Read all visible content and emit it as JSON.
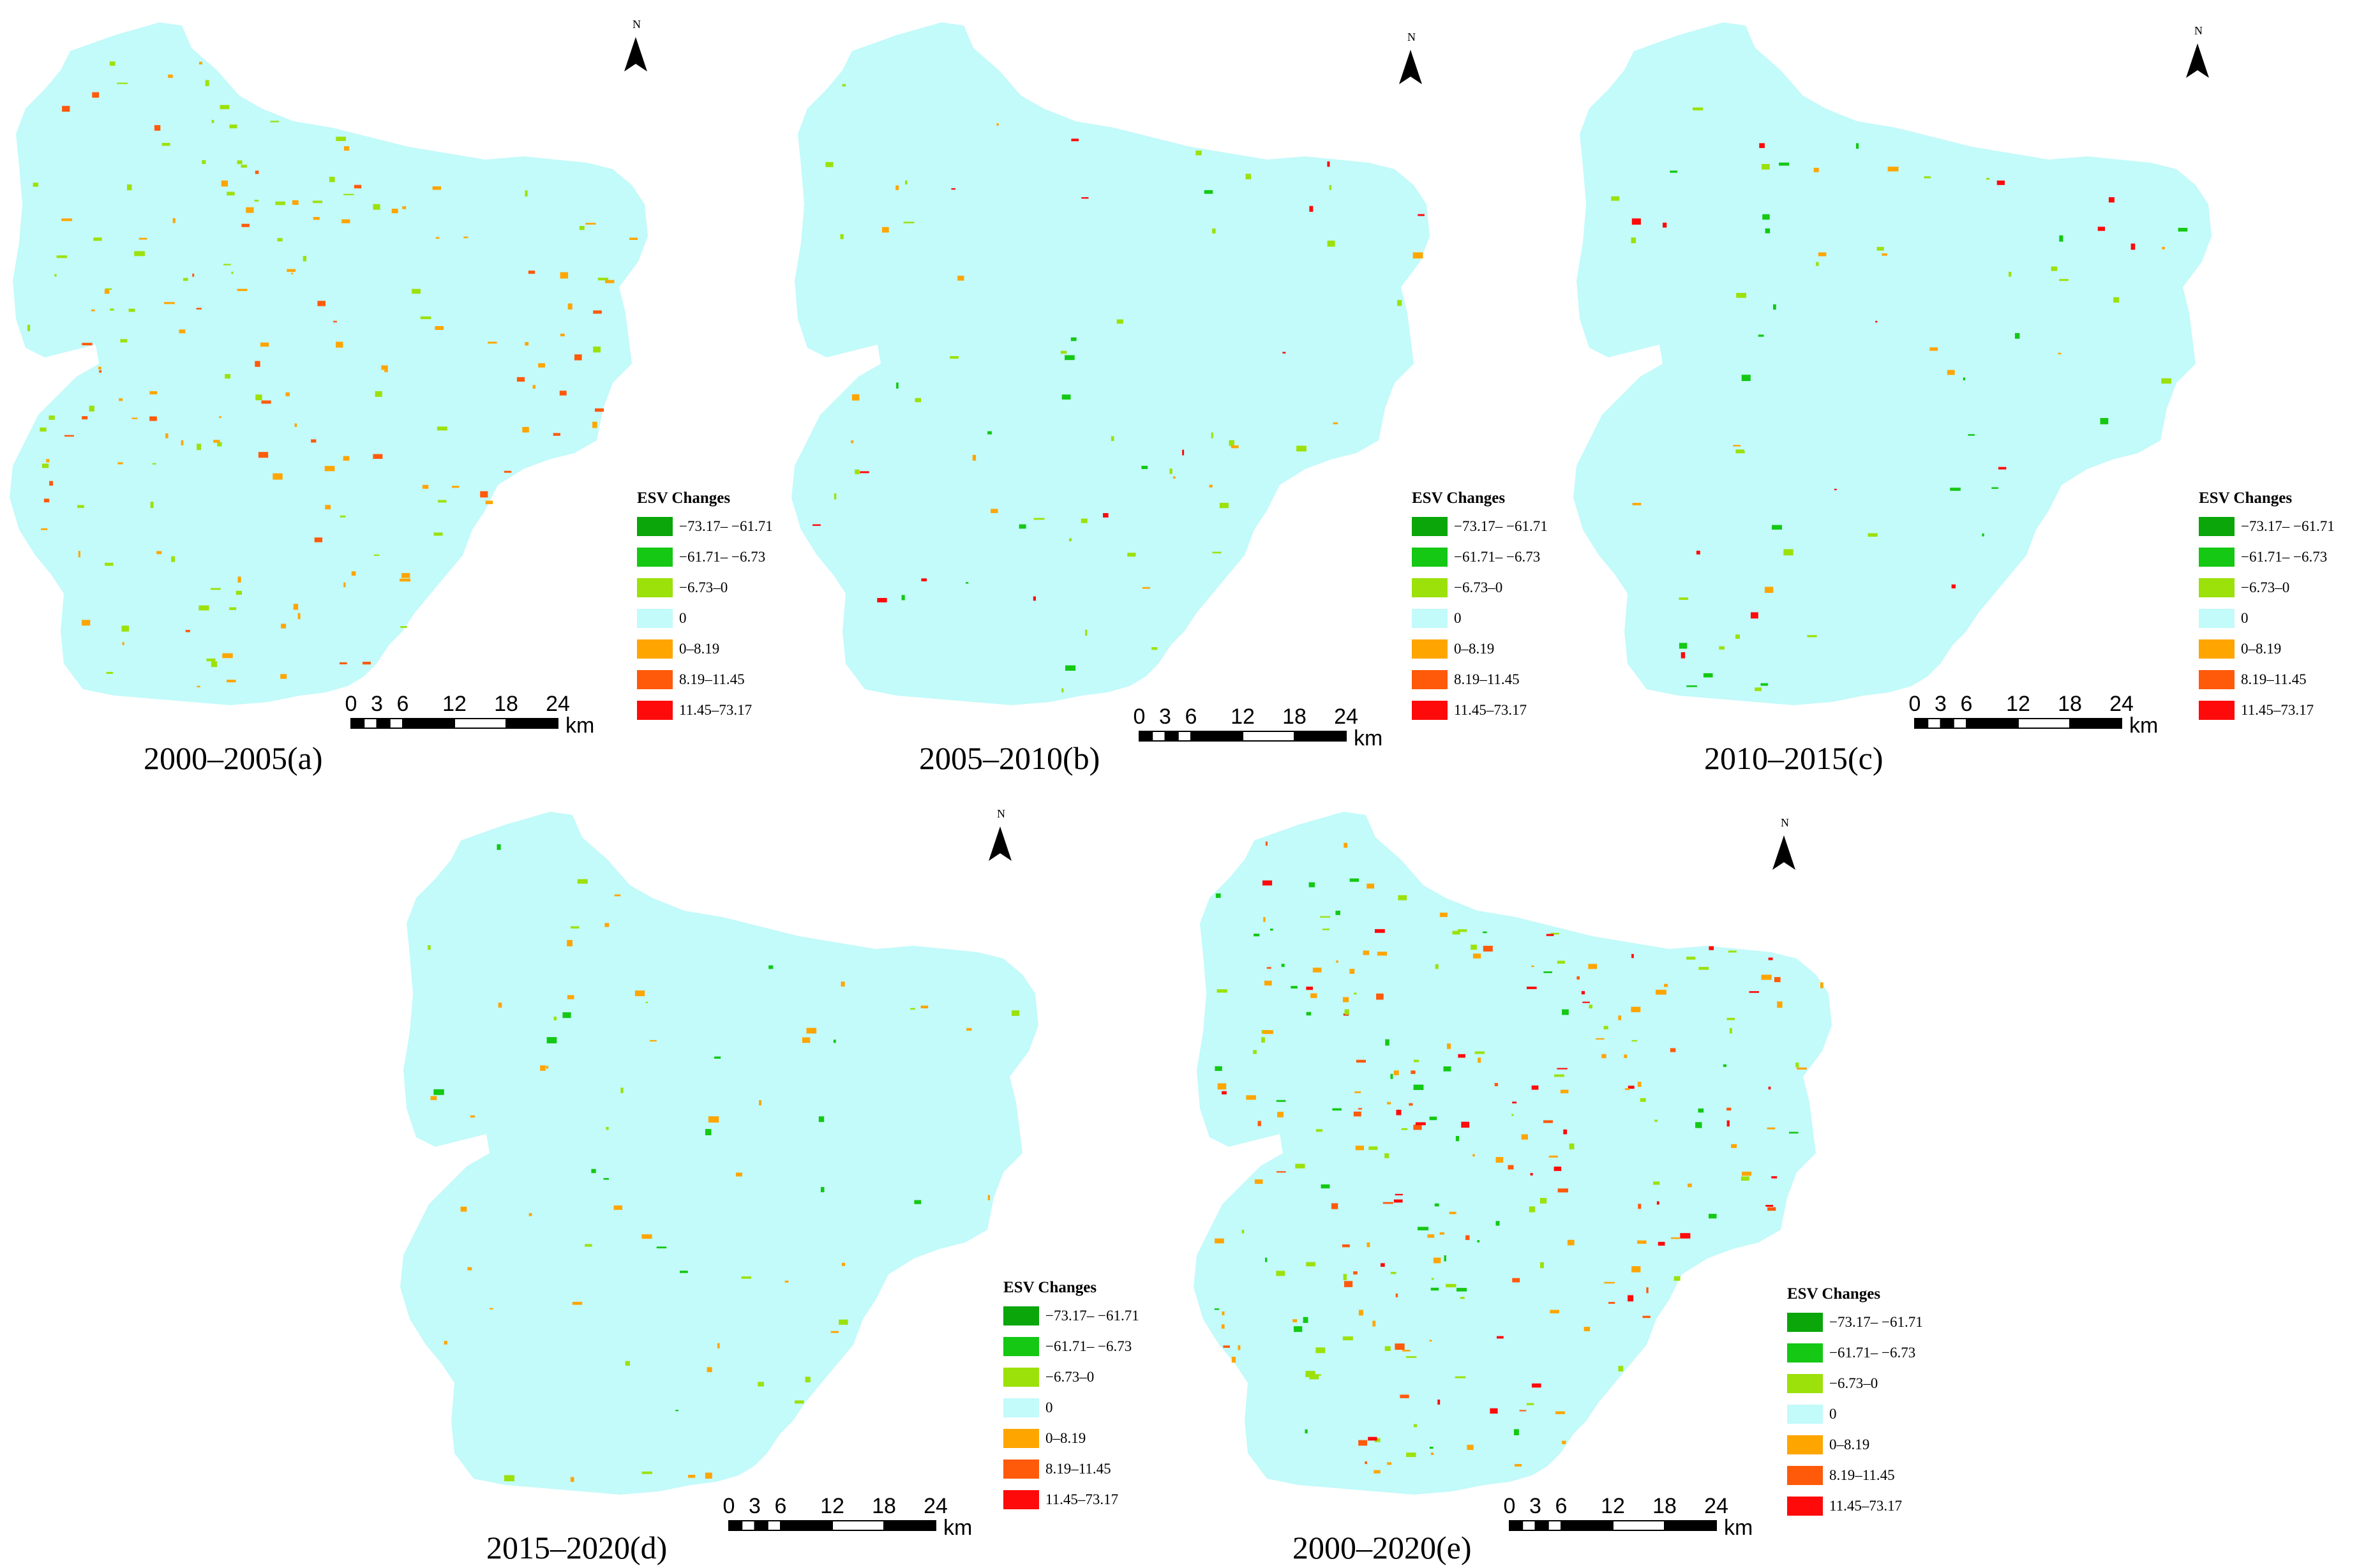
{
  "figure": {
    "legend_title": "ESV Changes",
    "legend": [
      {
        "label": "−73.17– −61.71",
        "color": "#0aa60a"
      },
      {
        "label": "−61.71– −6.73",
        "color": "#14c814"
      },
      {
        "label": "−6.73–0",
        "color": "#9ce10a"
      },
      {
        "label": "0",
        "color": "#c3fafa"
      },
      {
        "label": "0–8.19",
        "color": "#ffa500"
      },
      {
        "label": "8.19–11.45",
        "color": "#ff5a0a"
      },
      {
        "label": "11.45–73.17",
        "color": "#ff0a0a"
      }
    ],
    "scale_ticks": [
      "0",
      "3",
      "6",
      "12",
      "18",
      "24"
    ],
    "scale_unit": "km",
    "north_label": "N",
    "map_base_color": "#c3fafa"
  },
  "panels": [
    {
      "id": "a",
      "caption": "2000–2005(a)"
    },
    {
      "id": "b",
      "caption": "2005–2010(b)"
    },
    {
      "id": "c",
      "caption": "2010–2015(c)"
    },
    {
      "id": "d",
      "caption": "2015–2020(d)"
    },
    {
      "id": "e",
      "caption": "2000–2020(e)"
    }
  ]
}
